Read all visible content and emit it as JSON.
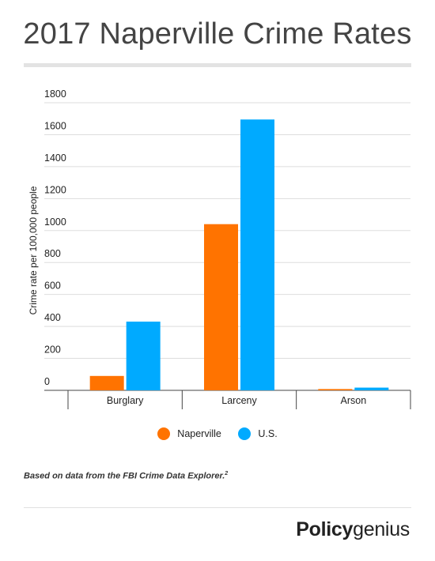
{
  "header": {
    "title": "2017 Naperville Crime Rates"
  },
  "chart_data": {
    "type": "bar",
    "categories": [
      "Burglary",
      "Larceny",
      "Arson"
    ],
    "series": [
      {
        "name": "Naperville",
        "color": "#ff7300",
        "values": [
          90,
          1040,
          8
        ]
      },
      {
        "name": "U.S.",
        "color": "#00aaff",
        "values": [
          430,
          1695,
          17
        ]
      }
    ],
    "ylabel": "Crime rate per 100,000 people",
    "xlabel": "",
    "ylim": [
      0,
      1800
    ],
    "yticks": [
      0,
      200,
      400,
      600,
      800,
      1000,
      1200,
      1400,
      1600,
      1800
    ],
    "grid": true,
    "legend": "bottom-center"
  },
  "footnote": {
    "text": "Based on data from the FBI Crime Data Explorer.",
    "sup": "2"
  },
  "brand": {
    "part1": "Policy",
    "part2": "genius"
  }
}
